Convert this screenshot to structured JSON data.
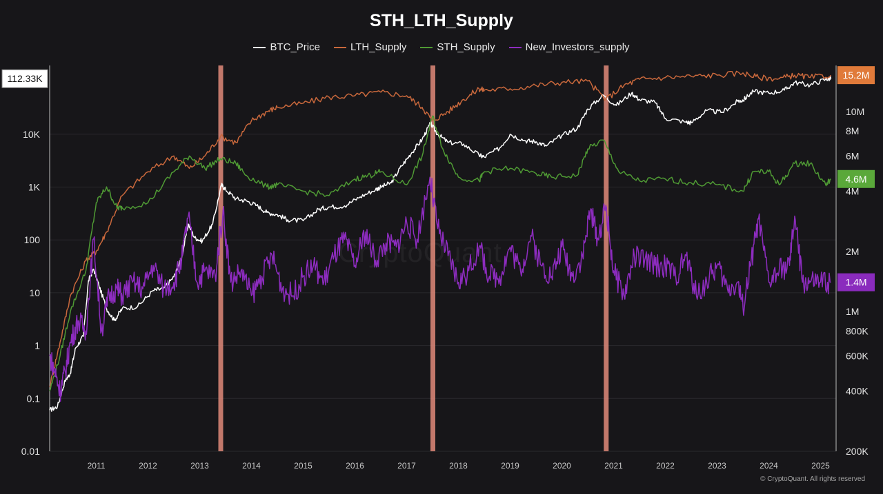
{
  "chart_data": {
    "type": "line",
    "title": "STH_LTH_Supply",
    "legend_position": "top-center",
    "grid": true,
    "x_range": [
      2010.6,
      2025.8
    ],
    "x_ticks": [
      "2011",
      "2012",
      "2013",
      "2014",
      "2015",
      "2016",
      "2017",
      "2018",
      "2019",
      "2020",
      "2021",
      "2022",
      "2023",
      "2024",
      "2025"
    ],
    "left_axis": {
      "scale": "log",
      "range": [
        0.01,
        200000
      ],
      "ticks": [
        {
          "v": 0.01,
          "label": "0.01"
        },
        {
          "v": 0.1,
          "label": "0.1"
        },
        {
          "v": 1,
          "label": "1"
        },
        {
          "v": 10,
          "label": "10"
        },
        {
          "v": 100,
          "label": "100"
        },
        {
          "v": 1000,
          "label": "1K"
        },
        {
          "v": 10000,
          "label": "10K"
        }
      ],
      "current_badge": {
        "value": 112330,
        "label": "112.33K"
      }
    },
    "right_axis": {
      "scale": "log",
      "range": [
        200000,
        17000000
      ],
      "ticks": [
        {
          "v": 200000,
          "label": "200K"
        },
        {
          "v": 400000,
          "label": "400K"
        },
        {
          "v": 600000,
          "label": "600K"
        },
        {
          "v": 800000,
          "label": "800K"
        },
        {
          "v": 1000000,
          "label": "1M"
        },
        {
          "v": 2000000,
          "label": "2M"
        },
        {
          "v": 4000000,
          "label": "4M"
        },
        {
          "v": 6000000,
          "label": "6M"
        },
        {
          "v": 8000000,
          "label": "8M"
        },
        {
          "v": 10000000,
          "label": "10M"
        }
      ]
    },
    "highlight_years": [
      2013.9,
      2018.0,
      2021.35
    ],
    "highlight_color": "#e0897a",
    "series": [
      {
        "name": "BTC_Price",
        "color": "#ffffff",
        "axis": "left",
        "x": [
          2010.6,
          2010.75,
          2010.9,
          2011.0,
          2011.1,
          2011.25,
          2011.35,
          2011.45,
          2011.55,
          2011.7,
          2011.85,
          2012.0,
          2012.3,
          2012.6,
          2012.8,
          2013.0,
          2013.15,
          2013.28,
          2013.4,
          2013.55,
          2013.75,
          2013.92,
          2014.0,
          2014.2,
          2014.4,
          2014.6,
          2014.8,
          2015.0,
          2015.2,
          2015.5,
          2015.8,
          2016.0,
          2016.3,
          2016.6,
          2016.9,
          2017.0,
          2017.2,
          2017.4,
          2017.6,
          2017.8,
          2017.96,
          2018.1,
          2018.3,
          2018.6,
          2018.9,
          2019.0,
          2019.3,
          2019.5,
          2019.8,
          2020.0,
          2020.2,
          2020.5,
          2020.8,
          2021.0,
          2021.3,
          2021.55,
          2021.85,
          2022.0,
          2022.3,
          2022.5,
          2022.9,
          2023.0,
          2023.3,
          2023.6,
          2023.9,
          2024.0,
          2024.2,
          2024.5,
          2024.8,
          2025.0,
          2025.3,
          2025.6,
          2025.7
        ],
        "y": [
          0.06,
          0.07,
          0.22,
          0.3,
          0.9,
          1.5,
          17,
          28,
          14,
          5,
          3,
          5,
          5.5,
          11,
          12,
          20,
          45,
          200,
          110,
          95,
          200,
          1100,
          900,
          600,
          550,
          450,
          330,
          300,
          240,
          230,
          380,
          420,
          440,
          650,
          900,
          1000,
          1200,
          2500,
          4500,
          8000,
          16000,
          10000,
          7000,
          6500,
          4000,
          3700,
          5500,
          10000,
          7500,
          7200,
          6000,
          9500,
          13000,
          30000,
          55000,
          35000,
          60000,
          45000,
          40000,
          20000,
          17000,
          16500,
          28000,
          26000,
          42000,
          44000,
          65000,
          60000,
          68000,
          95000,
          85000,
          110000,
          112330
        ]
      },
      {
        "name": "LTH_Supply",
        "color": "#c9683c",
        "axis": "right",
        "x": [
          2010.6,
          2010.8,
          2011.0,
          2011.3,
          2011.5,
          2011.7,
          2012.0,
          2012.5,
          2013.0,
          2013.3,
          2013.6,
          2013.9,
          2014.2,
          2014.5,
          2014.8,
          2015.0,
          2015.5,
          2016.0,
          2016.5,
          2017.0,
          2017.5,
          2017.8,
          2018.0,
          2018.3,
          2018.6,
          2018.9,
          2019.0,
          2019.5,
          2020.0,
          2020.5,
          2021.0,
          2021.35,
          2021.7,
          2022.0,
          2022.5,
          2023.0,
          2023.5,
          2024.0,
          2024.3,
          2024.7,
          2025.0,
          2025.3,
          2025.7
        ],
        "y": [
          420000,
          700000,
          1200000,
          1800000,
          2000000,
          2500000,
          3800000,
          5000000,
          6000000,
          5200000,
          6000000,
          7500000,
          7000000,
          9000000,
          10000000,
          10500000,
          11000000,
          11800000,
          12000000,
          12500000,
          12000000,
          10500000,
          9000000,
          10000000,
          11500000,
          13000000,
          12800000,
          13000000,
          13500000,
          14000000,
          14200000,
          11500000,
          13500000,
          14500000,
          14800000,
          15000000,
          15200000,
          15600000,
          14800000,
          14600000,
          15200000,
          14800000,
          15200000
        ]
      },
      {
        "name": "STH_Supply",
        "color": "#4f9a34",
        "axis": "right",
        "x": [
          2010.6,
          2010.8,
          2011.0,
          2011.3,
          2011.5,
          2011.7,
          2011.9,
          2012.0,
          2012.5,
          2013.0,
          2013.3,
          2013.6,
          2013.9,
          2014.2,
          2014.4,
          2014.8,
          2015.0,
          2015.5,
          2016.0,
          2016.5,
          2016.8,
          2017.0,
          2017.5,
          2017.8,
          2018.0,
          2018.2,
          2018.5,
          2018.9,
          2019.0,
          2019.5,
          2020.0,
          2020.3,
          2020.8,
          2021.0,
          2021.3,
          2021.6,
          2022.0,
          2022.5,
          2023.0,
          2023.5,
          2024.0,
          2024.2,
          2024.5,
          2024.7,
          2025.0,
          2025.3,
          2025.6,
          2025.7
        ],
        "y": [
          400000,
          600000,
          1000000,
          1600000,
          3500000,
          4200000,
          3300000,
          3300000,
          3500000,
          5000000,
          6000000,
          5200000,
          5800000,
          5500000,
          4800000,
          4200000,
          4300000,
          4000000,
          3800000,
          4600000,
          4800000,
          5000000,
          4300000,
          6000000,
          9500000,
          6500000,
          4700000,
          4500000,
          5000000,
          5200000,
          4900000,
          4700000,
          4800000,
          6500000,
          7200000,
          5000000,
          4500000,
          4600000,
          4400000,
          4300000,
          4000000,
          5000000,
          5000000,
          4300000,
          5500000,
          5500000,
          4300000,
          4600000
        ]
      },
      {
        "name": "New_Investors_supply",
        "color": "#8d2cbf",
        "axis": "right",
        "x": [
          2010.6,
          2010.7,
          2010.8,
          2010.9,
          2011.0,
          2011.15,
          2011.3,
          2011.45,
          2011.6,
          2011.75,
          2011.9,
          2012.0,
          2012.2,
          2012.4,
          2012.6,
          2012.8,
          2013.0,
          2013.15,
          2013.28,
          2013.45,
          2013.6,
          2013.8,
          2013.95,
          2014.1,
          2014.3,
          2014.5,
          2014.7,
          2014.9,
          2015.1,
          2015.3,
          2015.5,
          2015.7,
          2015.9,
          2016.1,
          2016.3,
          2016.5,
          2016.7,
          2016.9,
          2017.1,
          2017.3,
          2017.5,
          2017.7,
          2017.95,
          2018.1,
          2018.3,
          2018.5,
          2018.7,
          2018.9,
          2019.1,
          2019.3,
          2019.5,
          2019.7,
          2019.9,
          2020.1,
          2020.3,
          2020.5,
          2020.7,
          2020.9,
          2021.05,
          2021.2,
          2021.35,
          2021.5,
          2021.7,
          2021.9,
          2022.1,
          2022.3,
          2022.5,
          2022.7,
          2022.9,
          2023.1,
          2023.3,
          2023.5,
          2023.7,
          2023.9,
          2024.0,
          2024.15,
          2024.3,
          2024.5,
          2024.7,
          2024.9,
          2025.0,
          2025.15,
          2025.3,
          2025.5,
          2025.7
        ],
        "y": [
          600000,
          500000,
          400000,
          500000,
          700000,
          900000,
          800000,
          2300000,
          800000,
          1200000,
          1300000,
          1200000,
          1400000,
          1300000,
          1700000,
          1300000,
          1400000,
          1800000,
          3000000,
          1400000,
          1600000,
          1500000,
          3200000,
          1400000,
          1600000,
          1200000,
          1500000,
          1900000,
          1300000,
          1200000,
          1500000,
          1700000,
          1400000,
          1900000,
          2300000,
          1700000,
          2500000,
          1800000,
          2200000,
          2100000,
          2800000,
          2300000,
          4700000,
          2600000,
          1900000,
          1400000,
          1600000,
          2100000,
          1500000,
          1500000,
          2100000,
          1600000,
          2400000,
          1700000,
          1500000,
          2100000,
          1500000,
          1900000,
          3200000,
          2300000,
          3400000,
          1600000,
          1200000,
          1900000,
          1800000,
          1700000,
          1700000,
          1500000,
          1900000,
          1200000,
          1400000,
          1700000,
          1300000,
          1400000,
          1050000,
          1700000,
          2900000,
          1400000,
          1600000,
          1700000,
          3000000,
          1400000,
          1400000,
          1400000,
          1400000
        ]
      }
    ],
    "current_badges": [
      {
        "series": "LTH_Supply",
        "label": "15.2M",
        "value": 15200000,
        "color": "#e07a3a",
        "text_color": "#ffffff"
      },
      {
        "series": "STH_Supply",
        "label": "4.6M",
        "value": 4600000,
        "color": "#5aa83a",
        "text_color": "#ffffff"
      },
      {
        "series": "New_Investors_supply",
        "label": "1.4M",
        "value": 1400000,
        "color": "#8a2bbd",
        "text_color": "#ffffff"
      }
    ],
    "left_badge_style": {
      "bg": "#ffffff",
      "text": "#111111"
    }
  },
  "watermark": "CryptoQuant",
  "copyright": "© CryptoQuant. All rights reserved"
}
